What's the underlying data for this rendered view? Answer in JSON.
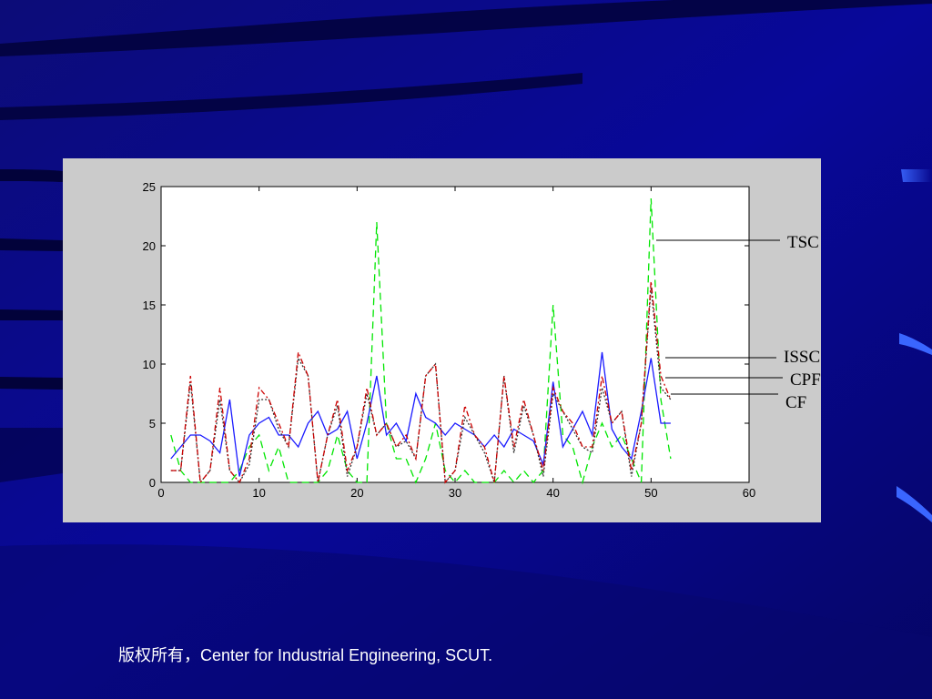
{
  "slide": {
    "footer": "版权所有，Center for Industrial Engineering, SCUT.",
    "background_color": "#0a0a8c"
  },
  "chart_data": {
    "type": "line",
    "title": "",
    "xlabel": "",
    "ylabel": "",
    "xlim": [
      0,
      60
    ],
    "ylim": [
      0,
      25
    ],
    "xticks": [
      0,
      10,
      20,
      30,
      40,
      50,
      60
    ],
    "yticks": [
      0,
      5,
      10,
      15,
      20,
      25
    ],
    "grid": false,
    "legend": "right, with leader lines",
    "x": [
      1,
      2,
      3,
      4,
      5,
      6,
      7,
      8,
      9,
      10,
      11,
      12,
      13,
      14,
      15,
      16,
      17,
      18,
      19,
      20,
      21,
      22,
      23,
      24,
      25,
      26,
      27,
      28,
      29,
      30,
      31,
      32,
      33,
      34,
      35,
      36,
      37,
      38,
      39,
      40,
      41,
      42,
      43,
      44,
      45,
      46,
      47,
      48,
      49,
      50,
      51,
      52
    ],
    "series": [
      {
        "name": "TSC",
        "color": "#00e600",
        "dash": "8,5",
        "values": [
          4,
          1,
          0,
          0,
          0,
          0,
          0,
          1,
          3,
          4,
          1,
          3,
          0,
          0,
          0,
          0,
          1,
          4,
          1,
          0,
          0,
          22,
          5,
          2,
          2,
          0,
          2,
          5,
          1,
          0,
          1,
          0,
          0,
          0,
          1,
          0,
          1,
          0,
          1,
          15,
          4,
          3,
          0,
          3,
          5,
          3,
          4,
          2,
          0,
          24,
          7,
          2
        ]
      },
      {
        "name": "ISSC",
        "color": "#1a1aff",
        "dash": "",
        "values": [
          2,
          3,
          4,
          4,
          3.5,
          2.5,
          7,
          0.5,
          4,
          5,
          5.5,
          4,
          4,
          3,
          5,
          6,
          4,
          4.5,
          6,
          2,
          5,
          9,
          4,
          5,
          3.5,
          7.5,
          5.5,
          5,
          4,
          5,
          4.5,
          4,
          3,
          4,
          3,
          4.5,
          4,
          3.5,
          1.5,
          8.5,
          3,
          4.5,
          6,
          4,
          11,
          4.5,
          3,
          2,
          6,
          10.5,
          5,
          5
        ]
      },
      {
        "name": "CPFR",
        "color": "#333333",
        "dash": "2,2",
        "values": [
          1,
          1,
          8.5,
          0,
          1,
          7,
          1,
          0,
          1.5,
          7,
          7,
          4.5,
          3,
          10.5,
          9,
          0,
          4,
          6.5,
          0.5,
          3,
          7.5,
          4,
          5,
          3,
          3.5,
          2,
          9,
          10,
          0,
          1,
          5.5,
          4,
          2.5,
          0,
          9,
          2.5,
          6.5,
          4,
          0.5,
          7.5,
          6,
          4.5,
          3,
          2.5,
          8,
          5,
          6,
          0.5,
          5,
          16.5,
          8,
          7
        ]
      },
      {
        "name": "CF",
        "color": "#cc0000",
        "dash": "6,3,2,3",
        "values": [
          1,
          1,
          9,
          0,
          1,
          8,
          1,
          0,
          2,
          8,
          7,
          5,
          3,
          11,
          9,
          0,
          4,
          7,
          1,
          3,
          8,
          4,
          5,
          3,
          4,
          2,
          9,
          10,
          0,
          1,
          6.5,
          4,
          3,
          0,
          9,
          3,
          7,
          4,
          1,
          8,
          6,
          5,
          3,
          3,
          9,
          5,
          6,
          1,
          5,
          17,
          9,
          7
        ]
      }
    ]
  }
}
